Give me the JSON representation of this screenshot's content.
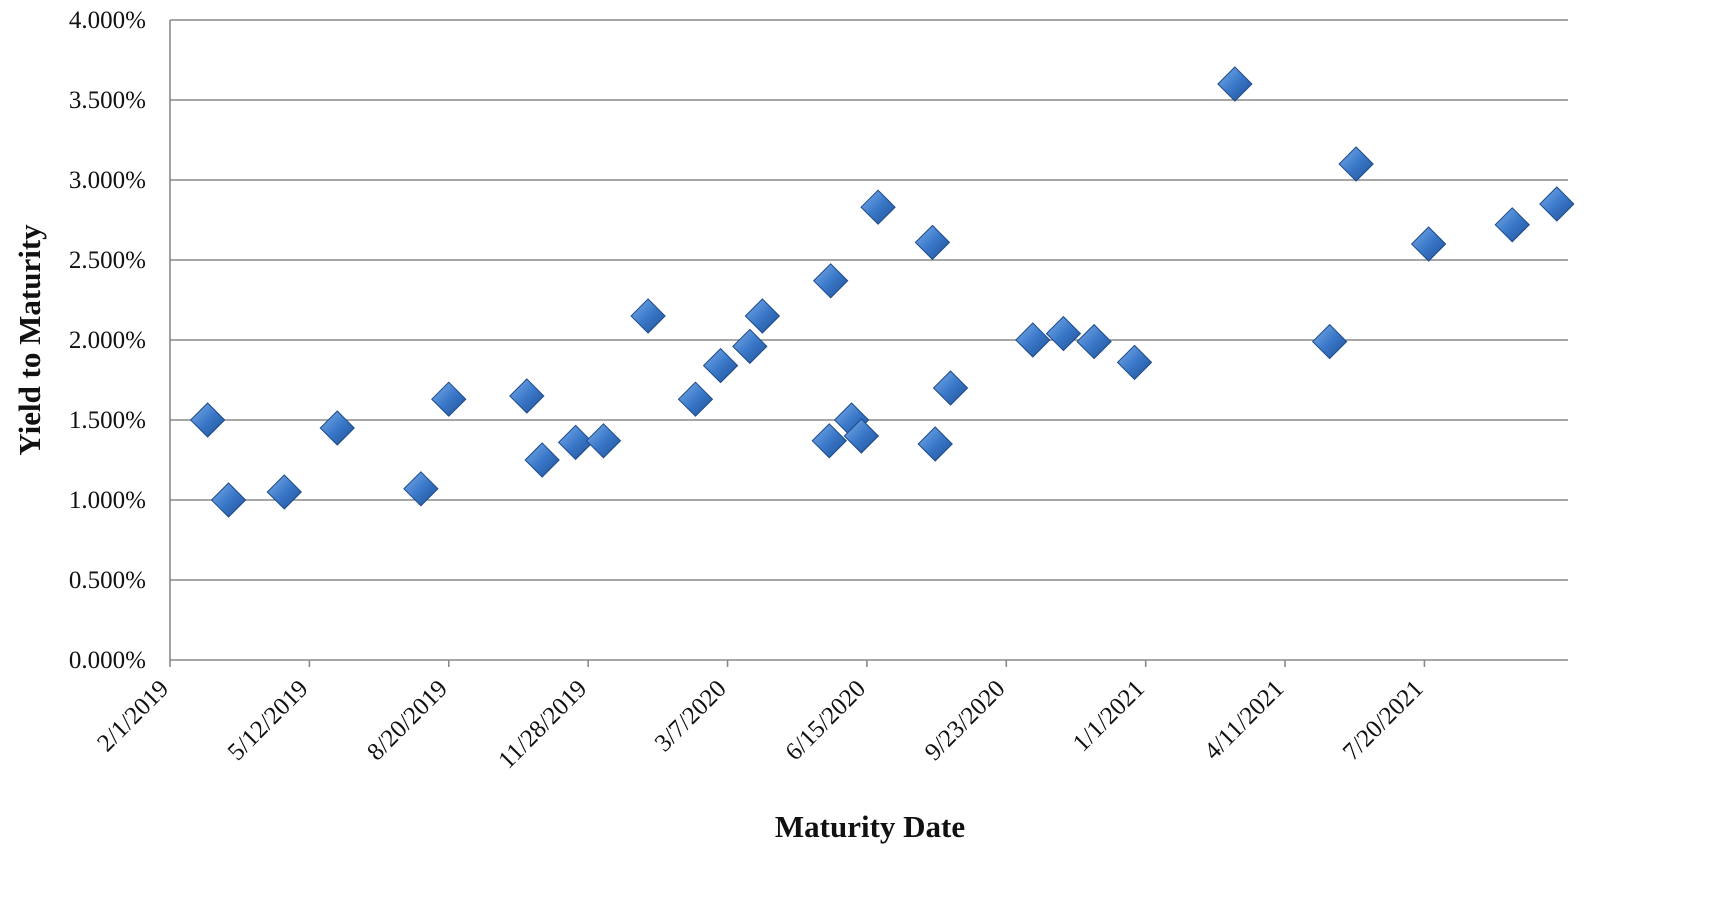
{
  "chart_data": {
    "type": "scatter",
    "title": "",
    "xlabel": "Maturity Date",
    "ylabel": "Yield to Maturity",
    "marker": "diamond",
    "marker_color": "#3a78c9",
    "grid": true,
    "legend": "none",
    "xlim": [
      "2019-02-01",
      "2021-10-31"
    ],
    "ylim": [
      0,
      0.04
    ],
    "x_tick_labels": [
      "2/1/2019",
      "5/12/2019",
      "8/20/2019",
      "11/28/2019",
      "3/7/2020",
      "6/15/2020",
      "9/23/2020",
      "1/1/2021",
      "4/11/2021",
      "7/20/2021"
    ],
    "y_tick_labels": [
      "0.000%",
      "0.500%",
      "1.000%",
      "1.500%",
      "2.000%",
      "2.500%",
      "3.000%",
      "3.500%",
      "4.000%"
    ],
    "y_tick_values": [
      0,
      0.005,
      0.01,
      0.015,
      0.02,
      0.025,
      0.03,
      0.035,
      0.04
    ],
    "points": [
      {
        "x": "2019-02-28",
        "y": 0.015
      },
      {
        "x": "2019-03-15",
        "y": 0.01
      },
      {
        "x": "2019-04-24",
        "y": 0.0105
      },
      {
        "x": "2019-06-01",
        "y": 0.0145
      },
      {
        "x": "2019-07-31",
        "y": 0.0107
      },
      {
        "x": "2019-08-20",
        "y": 0.0163
      },
      {
        "x": "2019-10-15",
        "y": 0.0165
      },
      {
        "x": "2019-10-26",
        "y": 0.0125
      },
      {
        "x": "2019-11-19",
        "y": 0.0136
      },
      {
        "x": "2019-12-09",
        "y": 0.0137
      },
      {
        "x": "2020-01-10",
        "y": 0.0215
      },
      {
        "x": "2020-02-13",
        "y": 0.0163
      },
      {
        "x": "2020-03-02",
        "y": 0.0184
      },
      {
        "x": "2020-03-23",
        "y": 0.0196
      },
      {
        "x": "2020-04-01",
        "y": 0.0215
      },
      {
        "x": "2020-05-20",
        "y": 0.0237
      },
      {
        "x": "2020-05-19",
        "y": 0.0137
      },
      {
        "x": "2020-06-04",
        "y": 0.015
      },
      {
        "x": "2020-06-11",
        "y": 0.014
      },
      {
        "x": "2020-06-23",
        "y": 0.0283
      },
      {
        "x": "2020-08-01",
        "y": 0.0261
      },
      {
        "x": "2020-08-03",
        "y": 0.0135
      },
      {
        "x": "2020-08-14",
        "y": 0.017
      },
      {
        "x": "2020-10-12",
        "y": 0.02
      },
      {
        "x": "2020-11-03",
        "y": 0.0204
      },
      {
        "x": "2020-11-25",
        "y": 0.0199
      },
      {
        "x": "2020-12-24",
        "y": 0.0186
      },
      {
        "x": "2021-03-06",
        "y": 0.036
      },
      {
        "x": "2021-05-13",
        "y": 0.0199
      },
      {
        "x": "2021-06-01",
        "y": 0.031
      },
      {
        "x": "2021-07-23",
        "y": 0.026
      },
      {
        "x": "2021-09-21",
        "y": 0.0272
      },
      {
        "x": "2021-10-23",
        "y": 0.0285
      }
    ]
  }
}
